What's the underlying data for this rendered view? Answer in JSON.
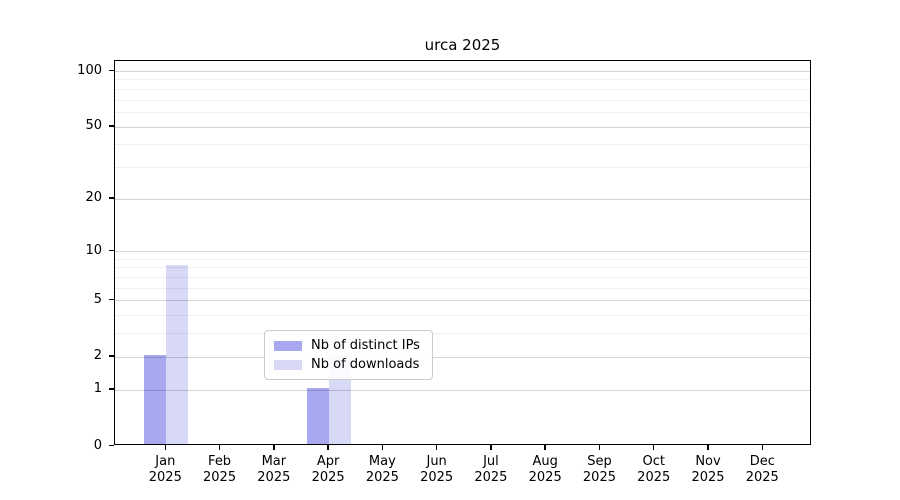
{
  "chart_data": {
    "type": "bar",
    "title": "urca 2025",
    "categories": [
      "Jan 2025",
      "Feb 2025",
      "Mar 2025",
      "Apr 2025",
      "May 2025",
      "Jun 2025",
      "Jul 2025",
      "Aug 2025",
      "Sep 2025",
      "Oct 2025",
      "Nov 2025",
      "Dec 2025"
    ],
    "series": [
      {
        "name": "Nb of distinct IPs",
        "color": "#a8a8f0",
        "values": [
          2,
          0,
          0,
          1,
          0,
          0,
          0,
          0,
          0,
          0,
          0,
          0
        ]
      },
      {
        "name": "Nb of downloads",
        "color": "#d8d8f7",
        "values": [
          8,
          0,
          0,
          2,
          0,
          0,
          0,
          0,
          0,
          0,
          0,
          0
        ]
      }
    ],
    "y_scale": "log10(1+value)",
    "ylim": [
      0,
      100
    ],
    "y_ticks": [
      0,
      1,
      2,
      5,
      10,
      20,
      50,
      100
    ],
    "y_minor_ticks": [
      3,
      4,
      6,
      7,
      8,
      9,
      30,
      40,
      60,
      70,
      80,
      90
    ],
    "grid": "horizontal",
    "legend_position": "lower center",
    "xlabel": "",
    "ylabel": ""
  },
  "colors": {
    "axis": "#000000",
    "major_grid": "rgba(0,0,0,0.17)",
    "minor_grid": "rgba(0,0,0,0.06)",
    "background": "#ffffff"
  }
}
